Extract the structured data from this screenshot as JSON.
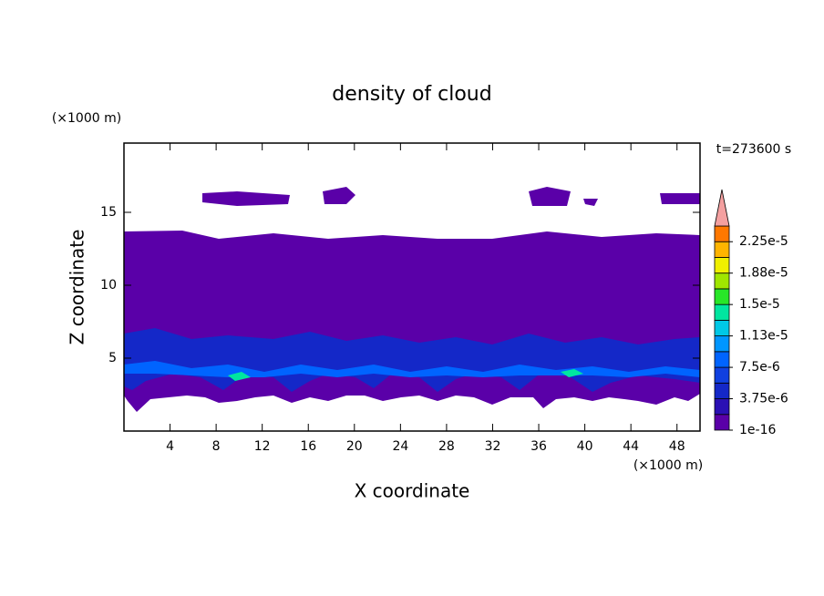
{
  "chart_data": {
    "type": "contour",
    "title": "density of cloud",
    "x_label": "X coordinate",
    "y_label": "Z coordinate",
    "x_unit": "(×1000 m)",
    "y_unit": "(×1000 m)",
    "time_label": "t=273600 s",
    "xlim": [
      0,
      50
    ],
    "xticks": [
      4,
      8,
      12,
      16,
      20,
      24,
      28,
      32,
      36,
      40,
      44,
      48
    ],
    "ylim": [
      0,
      19.75
    ],
    "yticks": [
      5,
      10,
      15
    ],
    "colorbar": {
      "clim": [
        0,
        2.4375e-05
      ],
      "levels": [
        1e-16,
        1.875e-06,
        3.75e-06,
        5.625e-06,
        7.5e-06,
        9.375e-06,
        1.125e-05,
        1.3125e-05,
        1.5e-05,
        1.6875e-05,
        1.875e-05,
        2.0625e-05,
        2.25e-05,
        2.4375e-05
      ],
      "colors": [
        "#5a00a8",
        "#2a10b4",
        "#1428c8",
        "#1040e0",
        "#0064ff",
        "#0096ff",
        "#00c8e6",
        "#00e6a0",
        "#28e628",
        "#a0e600",
        "#f0f000",
        "#ffb400",
        "#ff7800",
        "#ff3200"
      ],
      "extend_color": "#f4a0a0",
      "ticks": [
        {
          "value": 1e-16,
          "label": "1e-16"
        },
        {
          "value": 3.75e-06,
          "label": "3.75e-6"
        },
        {
          "value": 7.5e-06,
          "label": "7.5e-6"
        },
        {
          "value": 1.125e-05,
          "label": "1.13e-5"
        },
        {
          "value": 1.5e-05,
          "label": "1.5e-5"
        },
        {
          "value": 1.875e-05,
          "label": "1.88e-5"
        },
        {
          "value": 2.25e-05,
          "label": "2.25e-5"
        }
      ]
    }
  }
}
